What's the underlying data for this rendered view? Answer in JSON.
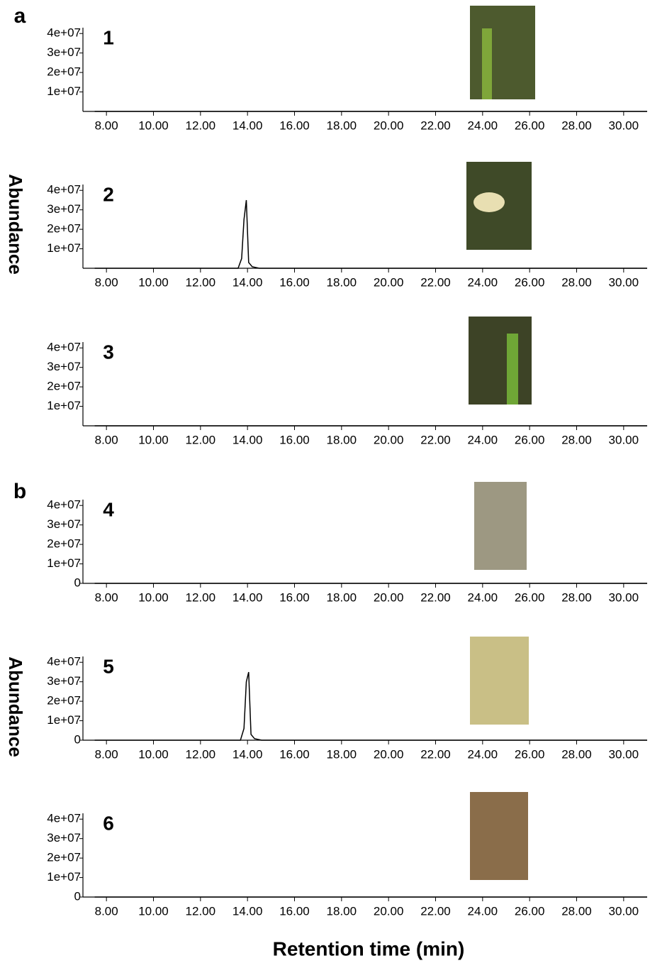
{
  "panels": [
    {
      "label": "a",
      "ylabel": "Abundance"
    },
    {
      "label": "b",
      "ylabel": "Abundance"
    }
  ],
  "xlabel": "Retention time (min)",
  "chart_data": [
    {
      "type": "line",
      "title": "1",
      "color": "#000000",
      "x": [
        7.5,
        31
      ],
      "values": [
        0,
        0
      ],
      "xlim": [
        7,
        31
      ],
      "ylim": [
        0,
        43000000
      ],
      "xticks": [
        {
          "value": 8,
          "label": "8.00"
        },
        {
          "value": 10,
          "label": "10.00"
        },
        {
          "value": 12,
          "label": "12.00"
        },
        {
          "value": 14,
          "label": "14.00"
        },
        {
          "value": 16,
          "label": "16.00"
        },
        {
          "value": 18,
          "label": "18.00"
        },
        {
          "value": 20,
          "label": "20.00"
        },
        {
          "value": 22,
          "label": "22.00"
        },
        {
          "value": 24,
          "label": "24.00"
        },
        {
          "value": 26,
          "label": "26.00"
        },
        {
          "value": 28,
          "label": "28.00"
        },
        {
          "value": 30,
          "label": "30.00"
        }
      ],
      "yticks": [
        {
          "value": 10000000,
          "label": "1e+07"
        },
        {
          "value": 20000000,
          "label": "2e+07"
        },
        {
          "value": 30000000,
          "label": "3e+07"
        },
        {
          "value": 40000000,
          "label": "4e+07"
        }
      ]
    },
    {
      "type": "line",
      "title": "2",
      "color": "#000000",
      "x": [
        7.5,
        13.6,
        13.75,
        13.85,
        13.95,
        14.05,
        14.2,
        14.5,
        31
      ],
      "values": [
        0,
        0,
        5000000,
        25000000,
        35000000,
        3000000,
        800000,
        0,
        0
      ],
      "xlim": [
        7,
        31
      ],
      "ylim": [
        0,
        43000000
      ],
      "xticks": [
        {
          "value": 8,
          "label": "8.00"
        },
        {
          "value": 10,
          "label": "10.00"
        },
        {
          "value": 12,
          "label": "12.00"
        },
        {
          "value": 14,
          "label": "14.00"
        },
        {
          "value": 16,
          "label": "16.00"
        },
        {
          "value": 18,
          "label": "18.00"
        },
        {
          "value": 20,
          "label": "20.00"
        },
        {
          "value": 22,
          "label": "22.00"
        },
        {
          "value": 24,
          "label": "24.00"
        },
        {
          "value": 26,
          "label": "26.00"
        },
        {
          "value": 28,
          "label": "28.00"
        },
        {
          "value": 30,
          "label": "30.00"
        }
      ],
      "yticks": [
        {
          "value": 10000000,
          "label": "1e+07"
        },
        {
          "value": 20000000,
          "label": "2e+07"
        },
        {
          "value": 30000000,
          "label": "3e+07"
        },
        {
          "value": 40000000,
          "label": "4e+07"
        }
      ]
    },
    {
      "type": "line",
      "title": "3",
      "color": "#000000",
      "x": [
        7.5,
        31
      ],
      "values": [
        0,
        0
      ],
      "xlim": [
        7,
        31
      ],
      "ylim": [
        0,
        43000000
      ],
      "xticks": [
        {
          "value": 8,
          "label": "8.00"
        },
        {
          "value": 10,
          "label": "10.00"
        },
        {
          "value": 12,
          "label": "12.00"
        },
        {
          "value": 14,
          "label": "14.00"
        },
        {
          "value": 16,
          "label": "16.00"
        },
        {
          "value": 18,
          "label": "18.00"
        },
        {
          "value": 20,
          "label": "20.00"
        },
        {
          "value": 22,
          "label": "22.00"
        },
        {
          "value": 24,
          "label": "24.00"
        },
        {
          "value": 26,
          "label": "26.00"
        },
        {
          "value": 28,
          "label": "28.00"
        },
        {
          "value": 30,
          "label": "30.00"
        }
      ],
      "yticks": [
        {
          "value": 10000000,
          "label": "1e+07"
        },
        {
          "value": 20000000,
          "label": "2e+07"
        },
        {
          "value": 30000000,
          "label": "3e+07"
        },
        {
          "value": 40000000,
          "label": "4e+07"
        }
      ]
    },
    {
      "type": "line",
      "title": "4",
      "color": "#000000",
      "x": [
        7.5,
        31
      ],
      "values": [
        0,
        0
      ],
      "xlim": [
        7,
        31
      ],
      "ylim": [
        0,
        43000000
      ],
      "xticks": [
        {
          "value": 8,
          "label": "8.00"
        },
        {
          "value": 10,
          "label": "10.00"
        },
        {
          "value": 12,
          "label": "12.00"
        },
        {
          "value": 14,
          "label": "14.00"
        },
        {
          "value": 16,
          "label": "16.00"
        },
        {
          "value": 18,
          "label": "18.00"
        },
        {
          "value": 20,
          "label": "20.00"
        },
        {
          "value": 22,
          "label": "22.00"
        },
        {
          "value": 24,
          "label": "24.00"
        },
        {
          "value": 26,
          "label": "26.00"
        },
        {
          "value": 28,
          "label": "28.00"
        },
        {
          "value": 30,
          "label": "30.00"
        }
      ],
      "yticks": [
        0,
        {
          "value": 10000000,
          "label": "1e+07"
        },
        {
          "value": 20000000,
          "label": "2e+07"
        },
        {
          "value": 30000000,
          "label": "3e+07"
        },
        {
          "value": 40000000,
          "label": "4e+07"
        }
      ]
    },
    {
      "type": "line",
      "title": "5",
      "color": "#000000",
      "x": [
        7.5,
        13.7,
        13.85,
        13.95,
        14.05,
        14.15,
        14.3,
        14.6,
        31
      ],
      "values": [
        0,
        0,
        6000000,
        30000000,
        35000000,
        3000000,
        800000,
        0,
        0
      ],
      "xlim": [
        7,
        31
      ],
      "ylim": [
        0,
        43000000
      ],
      "xticks": [
        {
          "value": 8,
          "label": "8.00"
        },
        {
          "value": 10,
          "label": "10.00"
        },
        {
          "value": 12,
          "label": "12.00"
        },
        {
          "value": 14,
          "label": "14.00"
        },
        {
          "value": 16,
          "label": "16.00"
        },
        {
          "value": 18,
          "label": "18.00"
        },
        {
          "value": 20,
          "label": "20.00"
        },
        {
          "value": 22,
          "label": "22.00"
        },
        {
          "value": 24,
          "label": "24.00"
        },
        {
          "value": 26,
          "label": "26.00"
        },
        {
          "value": 28,
          "label": "28.00"
        },
        {
          "value": 30,
          "label": "30.00"
        }
      ],
      "yticks": [
        0,
        {
          "value": 10000000,
          "label": "1e+07"
        },
        {
          "value": 20000000,
          "label": "2e+07"
        },
        {
          "value": 30000000,
          "label": "3e+07"
        },
        {
          "value": 40000000,
          "label": "4e+07"
        }
      ]
    },
    {
      "type": "line",
      "title": "6",
      "color": "#000000",
      "x": [
        7.5,
        31
      ],
      "values": [
        0,
        0
      ],
      "xlim": [
        7,
        31
      ],
      "ylim": [
        0,
        43000000
      ],
      "xticks": [
        {
          "value": 8,
          "label": "8.00"
        },
        {
          "value": 10,
          "label": "10.00"
        },
        {
          "value": 12,
          "label": "12.00"
        },
        {
          "value": 14,
          "label": "14.00"
        },
        {
          "value": 16,
          "label": "16.00"
        },
        {
          "value": 18,
          "label": "18.00"
        },
        {
          "value": 20,
          "label": "20.00"
        },
        {
          "value": 22,
          "label": "22.00"
        },
        {
          "value": 24,
          "label": "24.00"
        },
        {
          "value": 26,
          "label": "26.00"
        },
        {
          "value": 28,
          "label": "28.00"
        },
        {
          "value": 30,
          "label": "30.00"
        }
      ],
      "yticks": [
        0,
        {
          "value": 10000000,
          "label": "1e+07"
        },
        {
          "value": 20000000,
          "label": "2e+07"
        },
        {
          "value": 30000000,
          "label": "3e+07"
        },
        {
          "value": 40000000,
          "label": "4e+07"
        }
      ]
    }
  ]
}
